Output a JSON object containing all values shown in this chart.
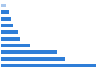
{
  "values": [
    160000,
    107000,
    95000,
    48000,
    32000,
    28000,
    20000,
    16000,
    13000,
    8000
  ],
  "bar_colors": [
    "#2f7ed8",
    "#2f7ed8",
    "#2f7ed8",
    "#2f7ed8",
    "#2f7ed8",
    "#2f7ed8",
    "#2f7ed8",
    "#2f7ed8",
    "#2f7ed8",
    "#aac8ed"
  ],
  "background_color": "#ffffff",
  "grid_color": "#e0e0e0",
  "bar_height": 0.55
}
